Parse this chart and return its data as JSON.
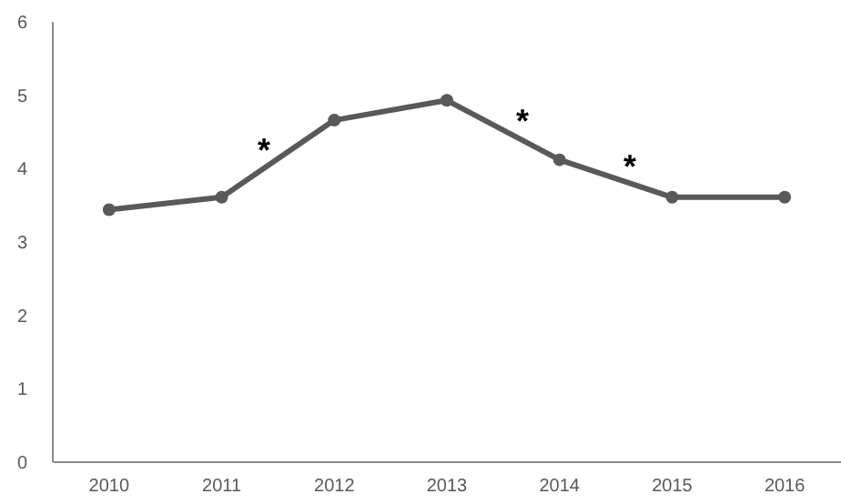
{
  "chart_data": {
    "type": "line",
    "categories": [
      "2010",
      "2011",
      "2012",
      "2013",
      "2014",
      "2015",
      "2016"
    ],
    "series": [
      {
        "color": "#595959",
        "values": [
          3.44,
          3.61,
          4.66,
          4.93,
          4.12,
          3.61,
          3.61
        ]
      }
    ],
    "ylim": [
      0,
      6
    ],
    "yticks": [
      0,
      1,
      2,
      3,
      4,
      5,
      6
    ],
    "grid": false,
    "marker": "circle",
    "line_style": "solid",
    "annotations": [
      "*",
      "*",
      "*"
    ]
  }
}
